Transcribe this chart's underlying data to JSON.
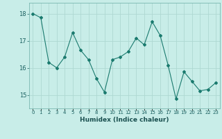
{
  "x": [
    0,
    1,
    2,
    3,
    4,
    5,
    6,
    7,
    8,
    9,
    10,
    11,
    12,
    13,
    14,
    15,
    16,
    17,
    18,
    19,
    20,
    21,
    22,
    23
  ],
  "y": [
    18.0,
    17.85,
    16.2,
    16.0,
    16.4,
    17.3,
    16.65,
    16.3,
    15.6,
    15.1,
    16.3,
    16.4,
    16.6,
    17.1,
    16.85,
    17.7,
    17.2,
    16.1,
    14.85,
    15.85,
    15.5,
    15.15,
    15.2,
    15.45
  ],
  "line_color": "#1a7a6e",
  "marker": "D",
  "marker_size": 2,
  "bg_color": "#c8ede8",
  "grid_color": "#aed8d2",
  "xlabel": "Humidex (Indice chaleur)",
  "ylim": [
    14.5,
    18.4
  ],
  "xlim": [
    -0.5,
    23.5
  ],
  "yticks": [
    15,
    16,
    17,
    18
  ],
  "xtick_labels": [
    "0",
    "1",
    "2",
    "3",
    "4",
    "5",
    "6",
    "7",
    "8",
    "9",
    "10",
    "11",
    "12",
    "13",
    "14",
    "15",
    "16",
    "17",
    "18",
    "19",
    "20",
    "21",
    "22",
    "23"
  ]
}
